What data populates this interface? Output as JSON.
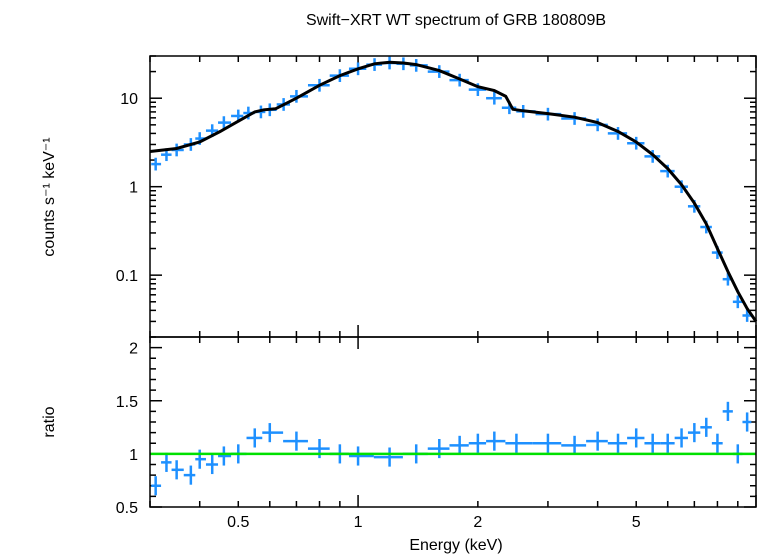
{
  "chart_data": [
    {
      "panel": "spectrum",
      "type": "scatter",
      "title": "Swift−XRT WT spectrum of GRB 180809B",
      "xlabel": "",
      "ylabel": "counts s⁻¹ keV⁻¹",
      "xscale": "log",
      "yscale": "log",
      "xlim": [
        0.3,
        10
      ],
      "ylim": [
        0.02,
        30
      ],
      "y_ticks": [
        0.1,
        1,
        10
      ],
      "y_tick_labels": [
        "0.1",
        "1",
        "10"
      ],
      "series": [
        {
          "role": "data",
          "color": "#1e90ff",
          "x": [
            0.31,
            0.33,
            0.35,
            0.38,
            0.4,
            0.43,
            0.46,
            0.5,
            0.53,
            0.57,
            0.6,
            0.65,
            0.7,
            0.8,
            0.9,
            1.0,
            1.1,
            1.2,
            1.3,
            1.4,
            1.6,
            1.8,
            2.0,
            2.2,
            2.4,
            2.6,
            3.0,
            3.5,
            4.0,
            4.5,
            5.0,
            5.5,
            6.0,
            6.5,
            7.0,
            7.5,
            8.0,
            8.5,
            9.0,
            9.5
          ],
          "y": [
            1.8,
            2.3,
            2.6,
            3.0,
            3.5,
            4.3,
            5.3,
            6.3,
            6.8,
            7.0,
            7.4,
            8.5,
            10.5,
            14.0,
            18.0,
            21.5,
            24.0,
            25.0,
            24.5,
            23.5,
            20.0,
            16.0,
            12.5,
            10.0,
            7.8,
            7.1,
            6.6,
            5.9,
            5.0,
            4.0,
            3.1,
            2.2,
            1.5,
            1.0,
            0.6,
            0.35,
            0.18,
            0.09,
            0.05,
            0.035
          ]
        },
        {
          "role": "model",
          "color": "#000000",
          "x": [
            0.3,
            0.35,
            0.4,
            0.45,
            0.5,
            0.55,
            0.58,
            0.62,
            0.7,
            0.8,
            0.9,
            1.0,
            1.1,
            1.2,
            1.3,
            1.4,
            1.6,
            1.8,
            2.0,
            2.2,
            2.35,
            2.45,
            2.6,
            3.0,
            3.5,
            4.0,
            4.5,
            5.0,
            5.5,
            6.0,
            6.5,
            7.0,
            7.5,
            8.0,
            8.5,
            9.0,
            9.5,
            10.0
          ],
          "y": [
            2.5,
            2.7,
            3.2,
            4.2,
            5.5,
            7.0,
            7.4,
            7.6,
            10.0,
            14.0,
            18.0,
            21.5,
            24.5,
            25.5,
            25.0,
            24.0,
            20.5,
            16.5,
            13.5,
            12.2,
            10.5,
            7.5,
            7.2,
            6.7,
            6.1,
            5.3,
            4.2,
            3.2,
            2.3,
            1.6,
            1.05,
            0.65,
            0.38,
            0.2,
            0.11,
            0.065,
            0.042,
            0.03
          ]
        }
      ]
    },
    {
      "panel": "ratio",
      "type": "scatter",
      "xlabel": "Energy (keV)",
      "ylabel": "ratio",
      "xscale": "log",
      "yscale": "linear",
      "xlim": [
        0.3,
        10
      ],
      "ylim": [
        0.5,
        2.1
      ],
      "x_ticks": [
        0.5,
        1,
        2,
        5
      ],
      "x_tick_labels": [
        "0.5",
        "1",
        "2",
        "5"
      ],
      "y_ticks": [
        0.5,
        1,
        1.5,
        2
      ],
      "y_tick_labels": [
        "0.5",
        "1",
        "1.5",
        "2"
      ],
      "reference_line": {
        "y": 1,
        "color": "#00e000"
      },
      "series": [
        {
          "role": "data",
          "color": "#1e90ff",
          "x": [
            0.31,
            0.33,
            0.35,
            0.38,
            0.4,
            0.43,
            0.46,
            0.5,
            0.55,
            0.6,
            0.7,
            0.8,
            0.9,
            1.0,
            1.2,
            1.4,
            1.6,
            1.8,
            2.0,
            2.2,
            2.5,
            3.0,
            3.5,
            4.0,
            4.5,
            5.0,
            5.5,
            6.0,
            6.5,
            7.0,
            7.5,
            8.0,
            8.5,
            9.0,
            9.5
          ],
          "y": [
            0.7,
            0.92,
            0.85,
            0.8,
            0.95,
            0.9,
            0.98,
            1.0,
            1.15,
            1.2,
            1.12,
            1.05,
            1.0,
            0.98,
            0.97,
            1.0,
            1.05,
            1.08,
            1.1,
            1.12,
            1.1,
            1.1,
            1.08,
            1.12,
            1.1,
            1.15,
            1.1,
            1.1,
            1.15,
            1.2,
            1.25,
            1.1,
            1.4,
            1.0,
            1.3
          ]
        }
      ]
    }
  ]
}
